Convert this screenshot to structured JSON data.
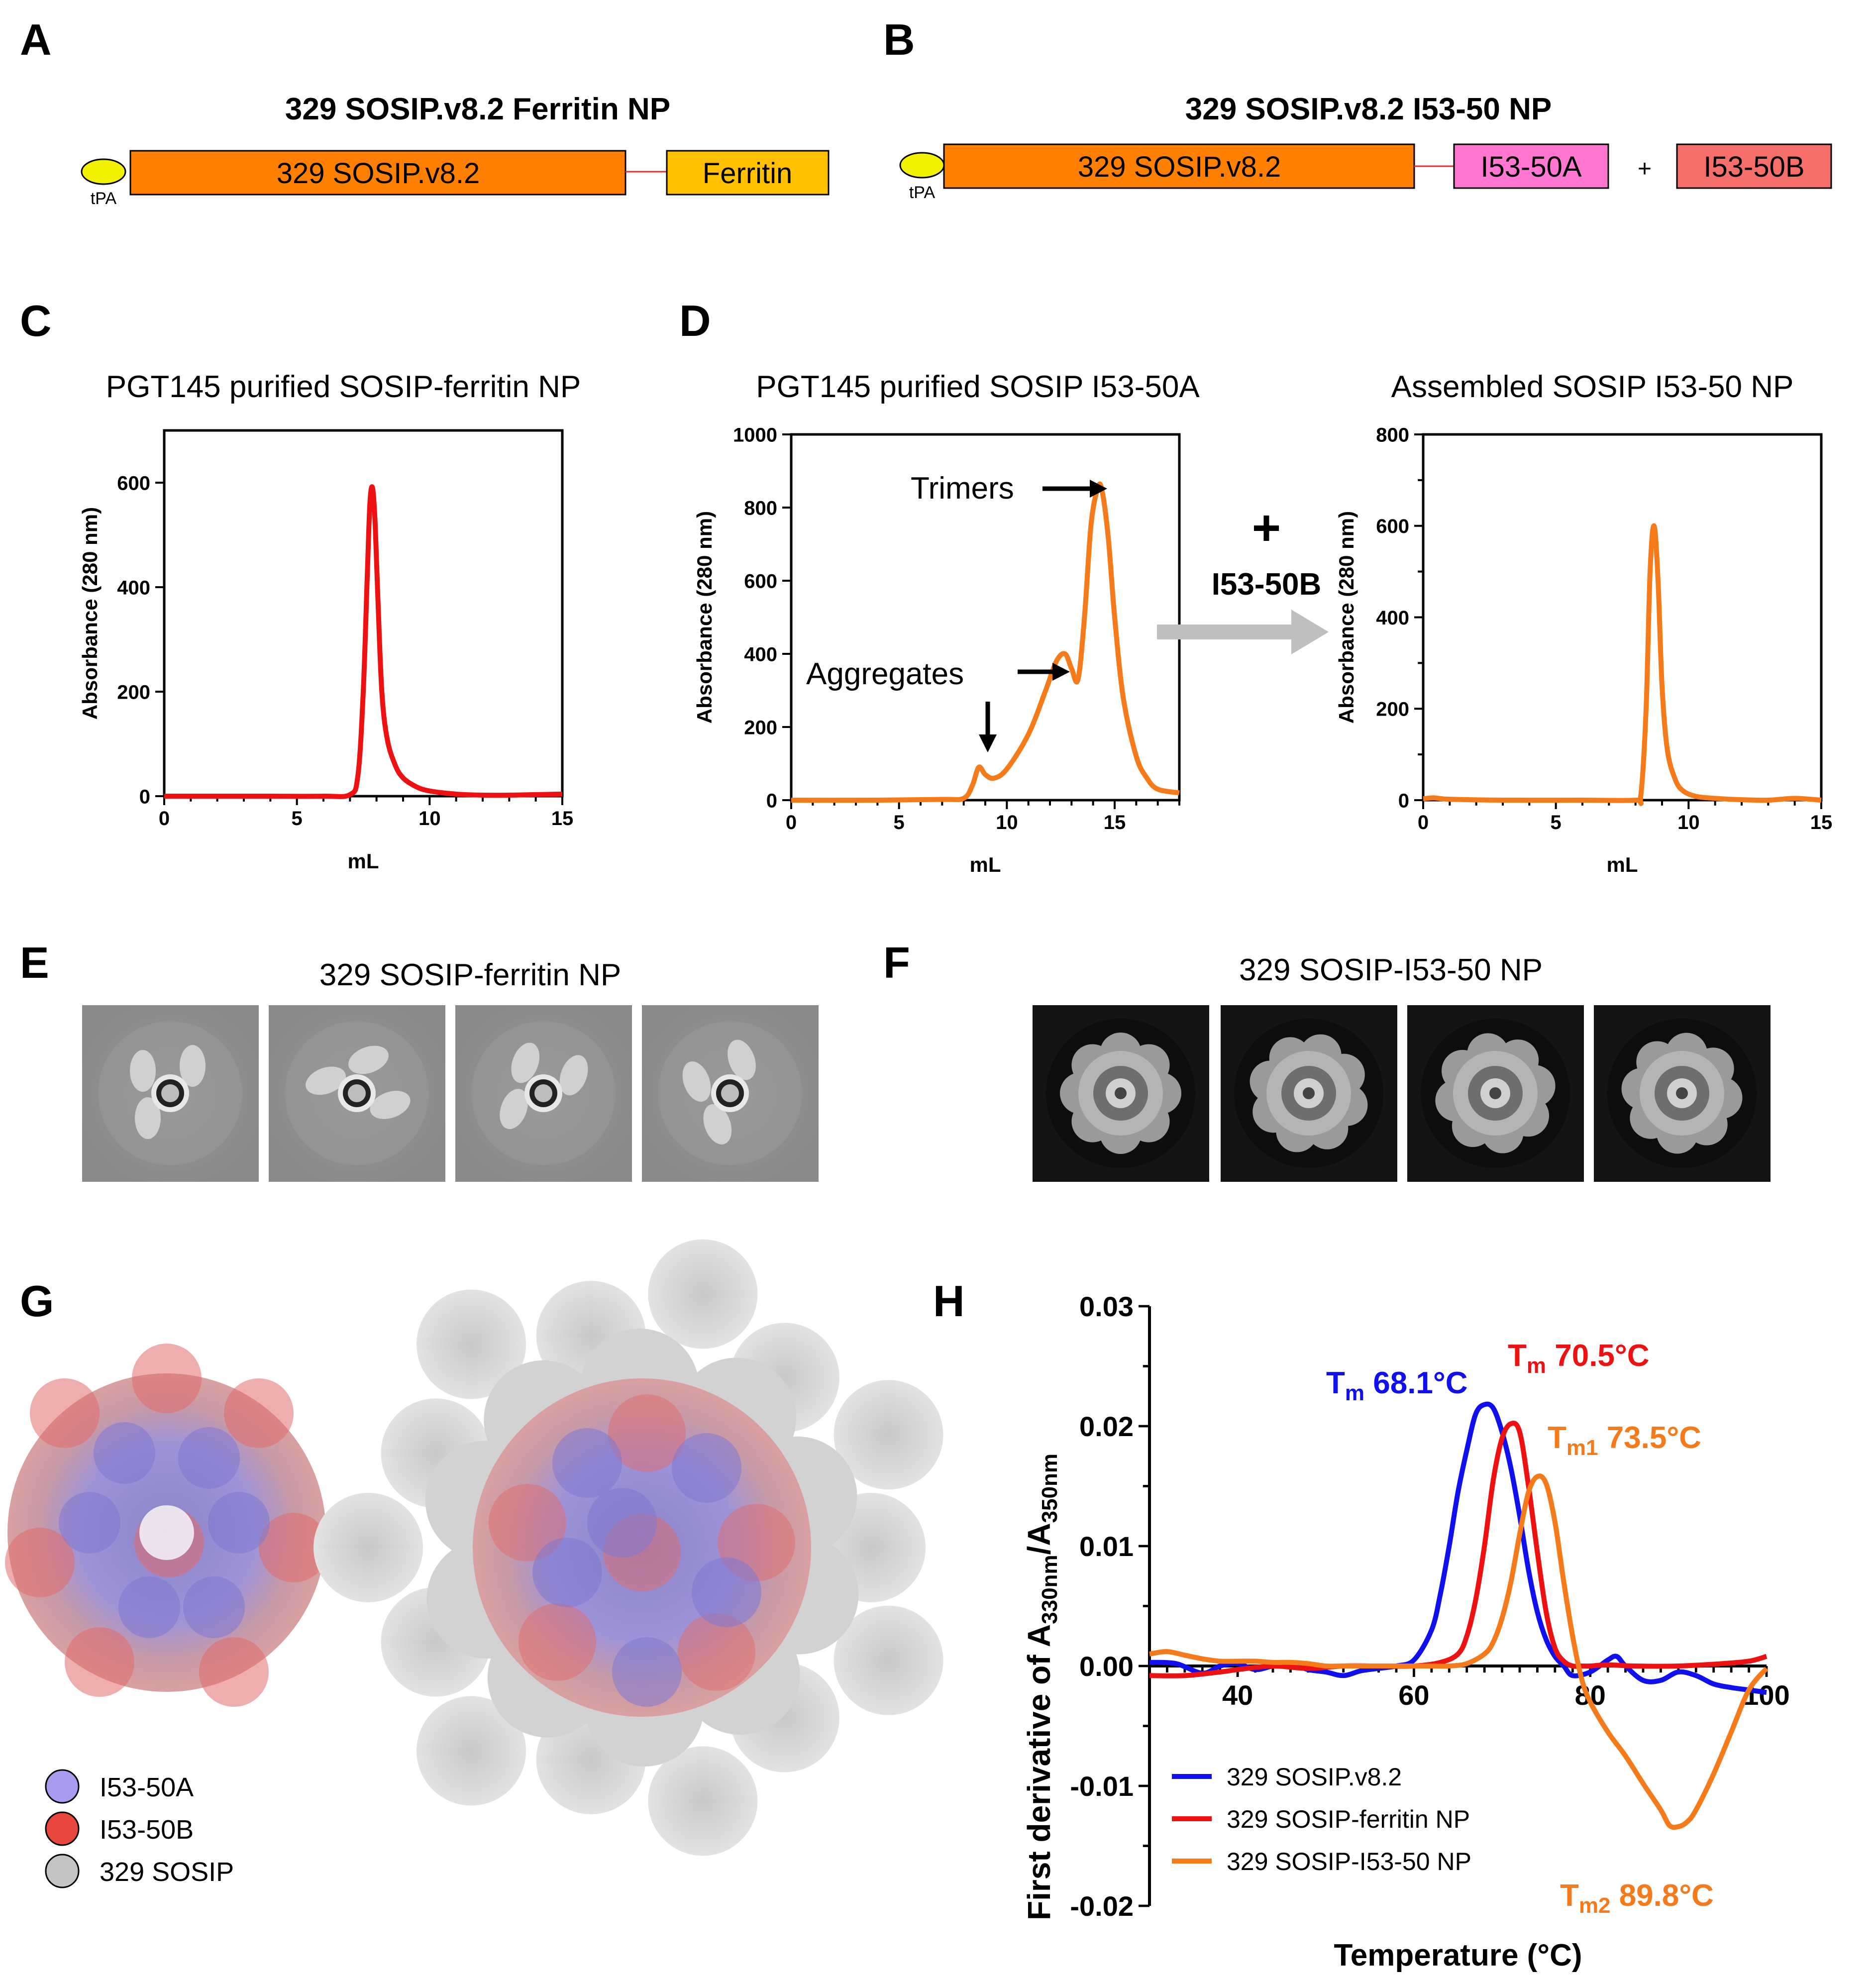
{
  "panels": {
    "a": {
      "letter": "A",
      "title": "329 SOSIP.v8.2 Ferritin NP",
      "signal": "tPA",
      "box1": "329 SOSIP.v8.2",
      "box2": "Ferritin"
    },
    "b": {
      "letter": "B",
      "title": "329 SOSIP.v8.2 I53-50 NP",
      "signal": "tPA",
      "box1": "329 SOSIP.v8.2",
      "box2": "I53-50A",
      "plus": "+",
      "box3": "I53-50B"
    },
    "c": {
      "letter": "C"
    },
    "d": {
      "letter": "D",
      "plus": "+",
      "arrow_label": "I53-50B",
      "ann_trimers": "Trimers",
      "ann_aggregates": "Aggregates"
    },
    "e": {
      "letter": "E",
      "title": "329 SOSIP-ferritin NP"
    },
    "f": {
      "letter": "F",
      "title": "329 SOSIP-I53-50 NP"
    },
    "g": {
      "letter": "G",
      "legend": [
        {
          "label": "I53-50A",
          "color": "#a99cf0"
        },
        {
          "label": "I53-50B",
          "color": "#e8473d"
        },
        {
          "label": "329 SOSIP",
          "color": "#c4c4c4"
        }
      ]
    },
    "h": {
      "letter": "H",
      "ann_tm1": {
        "sym": "T",
        "sub": "m",
        "val": " 68.1°C",
        "color": "#1010ee"
      },
      "ann_tm2": {
        "sym": "T",
        "sub": "m",
        "val": " 70.5°C",
        "color": "#ee1111"
      },
      "ann_tm3": {
        "sym": "T",
        "sub": "m1",
        "val": " 73.5°C",
        "color": "#f57a1a"
      },
      "ann_tm4": {
        "sym": "T",
        "sub": "m2",
        "val": " 89.8°C",
        "color": "#f57a1a"
      },
      "ylabel_main": "First derivative of A",
      "ylabel_sub1": "330nm",
      "ylabel_mid": "/A",
      "ylabel_sub2": "350nm"
    }
  },
  "chart_data": [
    {
      "id": "c",
      "type": "line",
      "title": "PGT145 purified SOSIP-ferritin NP",
      "xlabel": "mL",
      "ylabel": "Absorbance (280 nm)",
      "xlim": [
        0,
        15
      ],
      "ylim": [
        0,
        700
      ],
      "xticks": [
        0,
        5,
        10,
        15
      ],
      "yticks": [
        0,
        200,
        400,
        600
      ],
      "series": [
        {
          "name": "SOSIP-ferritin NP",
          "color": "#ee1111",
          "x": [
            0,
            2,
            4,
            6,
            7,
            7.3,
            7.5,
            7.65,
            7.75,
            7.85,
            7.95,
            8.05,
            8.2,
            8.4,
            8.7,
            9,
            9.5,
            10,
            11,
            12,
            13,
            14,
            15
          ],
          "y": [
            0,
            0,
            0,
            0,
            3,
            40,
            200,
            420,
            560,
            590,
            520,
            380,
            200,
            110,
            60,
            35,
            18,
            10,
            4,
            2,
            2,
            3,
            4
          ]
        }
      ]
    },
    {
      "id": "d1",
      "type": "line",
      "title": "PGT145 purified SOSIP I53-50A",
      "xlabel": "mL",
      "ylabel": "Absorbance (280 nm)",
      "xlim": [
        0,
        18
      ],
      "ylim": [
        0,
        1000
      ],
      "xticks": [
        0,
        5,
        10,
        15
      ],
      "yticks": [
        0,
        200,
        400,
        600,
        800,
        1000
      ],
      "series": [
        {
          "name": "SOSIP I53-50A",
          "color": "#f57a1a",
          "x": [
            0,
            4,
            7,
            8,
            8.4,
            8.7,
            9,
            9.4,
            10,
            11,
            11.8,
            12.3,
            12.7,
            13,
            13.3,
            13.6,
            13.9,
            14.2,
            14.4,
            14.7,
            15,
            15.4,
            16,
            16.5,
            17,
            18
          ],
          "y": [
            0,
            0,
            2,
            5,
            40,
            90,
            70,
            60,
            85,
            180,
            300,
            380,
            400,
            360,
            330,
            500,
            750,
            850,
            850,
            720,
            500,
            280,
            120,
            60,
            30,
            20
          ]
        }
      ]
    },
    {
      "id": "d2",
      "type": "line",
      "title": "Assembled SOSIP I53-50 NP",
      "xlabel": "mL",
      "ylabel": "Absorbance (280 nm)",
      "xlim": [
        0,
        15
      ],
      "ylim": [
        0,
        800
      ],
      "xticks": [
        0,
        5,
        10,
        15
      ],
      "yticks": [
        0,
        200,
        400,
        600,
        800
      ],
      "series": [
        {
          "name": "SOSIP I53-50 NP",
          "color": "#f57a1a",
          "x": [
            0,
            0.4,
            1,
            3,
            6,
            8,
            8.2,
            8.4,
            8.55,
            8.7,
            8.85,
            9,
            9.2,
            9.5,
            9.8,
            10.3,
            11,
            12,
            13,
            14,
            15
          ],
          "y": [
            3,
            5,
            2,
            0,
            0,
            0,
            10,
            200,
            500,
            600,
            480,
            250,
            110,
            45,
            20,
            8,
            4,
            1,
            0,
            4,
            0
          ]
        }
      ]
    },
    {
      "id": "h",
      "type": "line",
      "title": "",
      "xlabel": "Temperature (°C)",
      "ylabel": "First derivative of A330nm/A350nm",
      "xlim": [
        30,
        100
      ],
      "ylim": [
        -0.02,
        0.03
      ],
      "xticks": [
        40,
        60,
        80,
        100
      ],
      "yticks": [
        -0.02,
        -0.01,
        0.0,
        0.01,
        0.02,
        0.03
      ],
      "yticklabels": [
        "-0.02",
        "-0.01",
        "0.00",
        "0.01",
        "0.02",
        "0.03"
      ],
      "legend_position": "bottom-left",
      "series": [
        {
          "name": "329 SOSIP.v8.2",
          "color": "#1010ee",
          "x": [
            30,
            33,
            36,
            38,
            40,
            42,
            44,
            46,
            48,
            50,
            52,
            54,
            56,
            58,
            60,
            62,
            63,
            64,
            65,
            66,
            67,
            68,
            69,
            70,
            71,
            72,
            73,
            74,
            75,
            76,
            77,
            78,
            80,
            82,
            83,
            84,
            86,
            88,
            90,
            92,
            94,
            96,
            98,
            100
          ],
          "y": [
            0.0003,
            0.0002,
            -0.0006,
            0,
            0.0002,
            -0.0003,
            0,
            0.0002,
            -0.0003,
            -0.0005,
            -0.0008,
            -0.0004,
            -0.0002,
            0,
            0.0005,
            0.003,
            0.006,
            0.01,
            0.0145,
            0.018,
            0.021,
            0.0218,
            0.0215,
            0.0195,
            0.0165,
            0.0125,
            0.008,
            0.0045,
            0.0022,
            0.0008,
            0,
            -0.0008,
            -0.0005,
            0.0005,
            0.0008,
            0,
            -0.0012,
            -0.0012,
            -0.0005,
            -0.0008,
            -0.0015,
            -0.0018,
            -0.002,
            -0.0022
          ]
        },
        {
          "name": "329 SOSIP-ferritin NP",
          "color": "#ee1111",
          "x": [
            30,
            34,
            38,
            40,
            44,
            48,
            52,
            56,
            60,
            63,
            65,
            66,
            67,
            68,
            69,
            70,
            71,
            72,
            73,
            74,
            75,
            76,
            77,
            78,
            79,
            80,
            82,
            85,
            90,
            95,
            98,
            100
          ],
          "y": [
            -0.0008,
            -0.0008,
            -0.0005,
            -0.0003,
            0,
            -0.0002,
            0,
            0,
            0,
            0.0003,
            0.001,
            0.0025,
            0.0055,
            0.01,
            0.0155,
            0.019,
            0.0202,
            0.0195,
            0.015,
            0.0095,
            0.0045,
            0.0015,
            0.0004,
            0,
            0,
            0,
            0.0001,
            0,
            0,
            0.0002,
            0.0004,
            0.0008
          ]
        },
        {
          "name": "329 SOSIP-I53-50 NP",
          "color": "#f57a1a",
          "x": [
            30,
            32,
            34,
            36,
            38,
            40,
            42,
            44,
            46,
            48,
            50,
            52,
            54,
            56,
            58,
            60,
            62,
            64,
            66,
            68,
            69,
            70,
            71,
            72,
            73,
            74,
            75,
            76,
            77,
            78,
            79,
            80,
            82,
            84,
            86,
            88,
            89,
            90,
            91,
            92,
            94,
            96,
            98,
            100
          ],
          "y": [
            0.001,
            0.0012,
            0.0009,
            0.0006,
            0.0004,
            0.0004,
            0.0004,
            0.0003,
            0.0003,
            0.0002,
            0,
            0,
            0,
            0,
            0,
            0,
            0,
            0,
            0.0002,
            0.001,
            0.002,
            0.004,
            0.007,
            0.011,
            0.0145,
            0.0158,
            0.0152,
            0.012,
            0.007,
            0.0025,
            -0.001,
            -0.003,
            -0.0055,
            -0.0075,
            -0.0098,
            -0.012,
            -0.0133,
            -0.0134,
            -0.013,
            -0.012,
            -0.009,
            -0.0055,
            -0.002,
            -0.0002
          ]
        }
      ]
    }
  ]
}
